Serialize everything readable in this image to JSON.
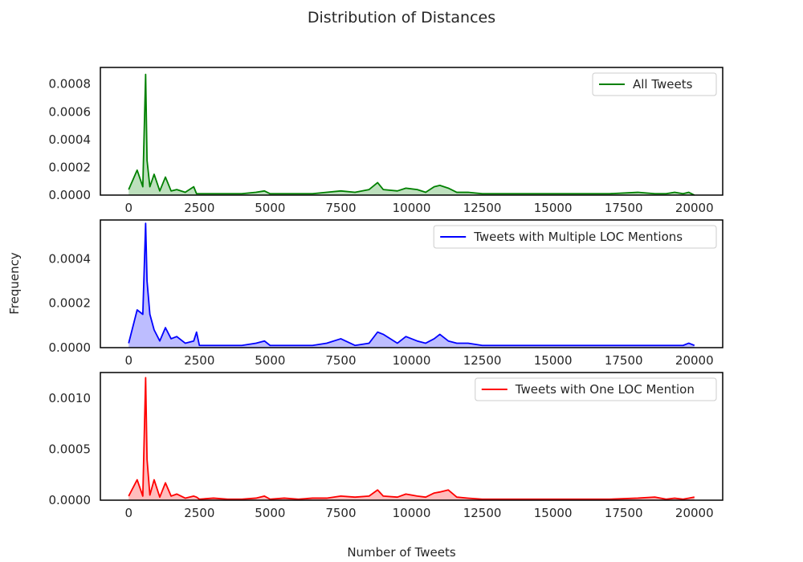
{
  "chart_data": {
    "type": "area",
    "title": "Distribution of Distances",
    "xlabel": "Number of Tweets",
    "ylabel": "Frequency",
    "xlim": [
      -1000,
      21000
    ],
    "xticks": [
      0,
      2500,
      5000,
      7500,
      10000,
      12500,
      15000,
      17500,
      20000
    ],
    "x": [
      0,
      300,
      500,
      600,
      650,
      750,
      900,
      1100,
      1300,
      1500,
      1700,
      2000,
      2300,
      2400,
      2500,
      3000,
      3500,
      4000,
      4500,
      4800,
      5000,
      5500,
      6000,
      6500,
      7000,
      7500,
      8000,
      8500,
      8800,
      9000,
      9500,
      9800,
      10200,
      10500,
      10800,
      11000,
      11300,
      11600,
      12000,
      12500,
      13000,
      14000,
      15000,
      16000,
      17000,
      18000,
      18600,
      19000,
      19300,
      19600,
      19800,
      20000
    ],
    "panels": [
      {
        "name": "panel-all",
        "legend": "All Tweets",
        "color": "#008000",
        "fill": "#b2dab2",
        "ylim": [
          0,
          0.00092
        ],
        "yticks": [
          "0.0000",
          "0.0002",
          "0.0004",
          "0.0006",
          "0.0008"
        ],
        "ytick_values": [
          0,
          0.0002,
          0.0004,
          0.0006,
          0.0008
        ],
        "values": [
          4e-05,
          0.00018,
          6e-05,
          0.00087,
          0.00025,
          6e-05,
          0.00015,
          3e-05,
          0.00013,
          3e-05,
          4e-05,
          2e-05,
          6e-05,
          1e-05,
          1e-05,
          1e-05,
          1e-05,
          1e-05,
          2e-05,
          3e-05,
          1e-05,
          1e-05,
          1e-05,
          1e-05,
          2e-05,
          3e-05,
          2e-05,
          4e-05,
          9e-05,
          4e-05,
          3e-05,
          5e-05,
          4e-05,
          2e-05,
          6e-05,
          7e-05,
          5e-05,
          2e-05,
          2e-05,
          1e-05,
          1e-05,
          1e-05,
          1e-05,
          1e-05,
          1e-05,
          2e-05,
          1e-05,
          1e-05,
          2e-05,
          1e-05,
          2e-05,
          0.0
        ]
      },
      {
        "name": "panel-multiple",
        "legend": "Tweets with Multiple LOC Mentions",
        "color": "#0000ff",
        "fill": "#b2b2ff",
        "ylim": [
          0,
          0.000575
        ],
        "yticks": [
          "0.0000",
          "0.0002",
          "0.0004"
        ],
        "ytick_values": [
          0,
          0.0002,
          0.0004
        ],
        "values": [
          2e-05,
          0.00017,
          0.00015,
          0.00056,
          0.0003,
          0.00015,
          8e-05,
          3e-05,
          9e-05,
          4e-05,
          5e-05,
          2e-05,
          3e-05,
          7e-05,
          1e-05,
          1e-05,
          1e-05,
          1e-05,
          2e-05,
          3e-05,
          1e-05,
          1e-05,
          1e-05,
          1e-05,
          2e-05,
          4e-05,
          1e-05,
          2e-05,
          7e-05,
          6e-05,
          2e-05,
          5e-05,
          3e-05,
          2e-05,
          4e-05,
          6e-05,
          3e-05,
          2e-05,
          2e-05,
          1e-05,
          1e-05,
          1e-05,
          1e-05,
          1e-05,
          1e-05,
          1e-05,
          1e-05,
          1e-05,
          1e-05,
          1e-05,
          2e-05,
          1e-05
        ]
      },
      {
        "name": "panel-one",
        "legend": "Tweets with One LOC Mention",
        "color": "#ff0000",
        "fill": "#ffb2b2",
        "ylim": [
          0,
          0.00125
        ],
        "yticks": [
          "0.0000",
          "0.0005",
          "0.0010"
        ],
        "ytick_values": [
          0,
          0.0005,
          0.001
        ],
        "values": [
          4e-05,
          0.0002,
          4e-05,
          0.0012,
          0.0004,
          5e-05,
          0.0002,
          3e-05,
          0.00017,
          4e-05,
          6e-05,
          2e-05,
          4e-05,
          3e-05,
          1e-05,
          2e-05,
          1e-05,
          1e-05,
          2e-05,
          4e-05,
          1e-05,
          2e-05,
          1e-05,
          2e-05,
          2e-05,
          4e-05,
          3e-05,
          4e-05,
          0.0001,
          4e-05,
          3e-05,
          6e-05,
          4e-05,
          3e-05,
          7e-05,
          8e-05,
          0.0001,
          3e-05,
          2e-05,
          1e-05,
          1e-05,
          1e-05,
          1e-05,
          1e-05,
          1e-05,
          2e-05,
          3e-05,
          1e-05,
          2e-05,
          1e-05,
          2e-05,
          3e-05
        ]
      }
    ]
  }
}
